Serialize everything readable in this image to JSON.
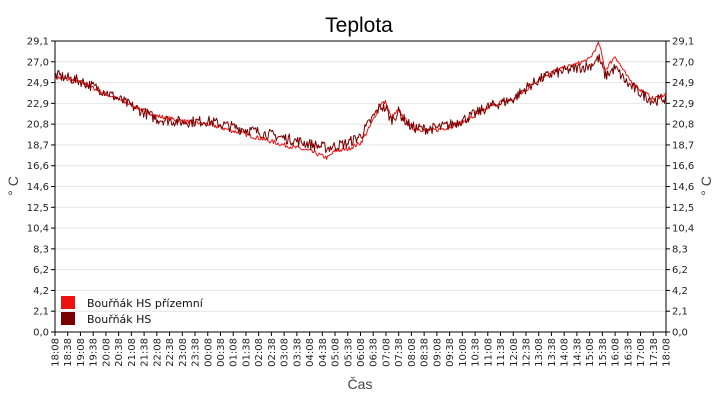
{
  "chart_data": {
    "type": "line",
    "title": "Teplota",
    "xlabel": "Čas",
    "ylabel": "° C",
    "ylim": [
      0,
      29.1
    ],
    "yticks": [
      "0,0",
      "2,1",
      "4,2",
      "6,2",
      "8,3",
      "10,4",
      "12,5",
      "14,6",
      "16,6",
      "18,7",
      "20,8",
      "22,9",
      "24,9",
      "27,0",
      "29,1"
    ],
    "xticks": [
      "18:08",
      "18:38",
      "19:08",
      "19:38",
      "20:08",
      "20:38",
      "21:08",
      "21:38",
      "22:08",
      "22:38",
      "23:08",
      "23:38",
      "00:08",
      "00:38",
      "01:08",
      "01:38",
      "02:08",
      "02:38",
      "03:08",
      "03:38",
      "04:08",
      "04:38",
      "05:08",
      "05:38",
      "06:08",
      "06:38",
      "07:08",
      "07:38",
      "08:08",
      "08:38",
      "09:08",
      "09:38",
      "10:08",
      "10:38",
      "11:08",
      "11:38",
      "12:08",
      "12:38",
      "13:08",
      "13:38",
      "14:08",
      "14:38",
      "15:08",
      "15:38",
      "16:08",
      "16:38",
      "17:08",
      "17:38",
      "18:08"
    ],
    "grid": true,
    "legend_position": "bottom-left",
    "series": [
      {
        "name": "Bouřňák HS přízemní",
        "color": "#ee1111",
        "x": [
          "18:08",
          "19:08",
          "20:08",
          "21:08",
          "22:08",
          "23:08",
          "00:08",
          "01:08",
          "02:08",
          "03:08",
          "04:08",
          "04:50",
          "05:08",
          "05:38",
          "06:08",
          "06:30",
          "06:55",
          "07:08",
          "07:20",
          "07:38",
          "07:50",
          "08:08",
          "08:38",
          "09:08",
          "09:38",
          "10:08",
          "10:38",
          "11:08",
          "11:38",
          "12:08",
          "12:38",
          "13:08",
          "13:38",
          "14:08",
          "14:38",
          "15:08",
          "15:30",
          "15:45",
          "16:08",
          "16:38",
          "17:08",
          "17:38",
          "18:08"
        ],
        "values": [
          25.5,
          25.0,
          23.8,
          22.7,
          21.6,
          21.1,
          20.8,
          20.1,
          19.4,
          18.7,
          18.1,
          17.4,
          18.1,
          18.3,
          18.9,
          20.5,
          22.8,
          23.0,
          21.4,
          22.2,
          21.4,
          20.4,
          20.2,
          20.2,
          20.5,
          21.0,
          21.6,
          22.4,
          23.0,
          23.2,
          24.2,
          25.3,
          26.0,
          26.4,
          26.8,
          27.3,
          28.9,
          26.2,
          27.6,
          25.4,
          24.2,
          23.3,
          23.8
        ]
      },
      {
        "name": "Bouřňák HS",
        "color": "#7a0000",
        "x": [
          "18:08",
          "19:08",
          "20:08",
          "21:08",
          "22:08",
          "23:08",
          "00:08",
          "01:08",
          "02:08",
          "03:08",
          "04:08",
          "04:50",
          "05:08",
          "05:38",
          "06:08",
          "06:30",
          "06:55",
          "07:08",
          "07:20",
          "07:38",
          "07:50",
          "08:08",
          "08:38",
          "09:08",
          "09:38",
          "10:08",
          "10:38",
          "11:08",
          "11:38",
          "12:08",
          "12:38",
          "13:08",
          "13:38",
          "14:08",
          "14:38",
          "15:08",
          "15:30",
          "15:45",
          "16:08",
          "16:38",
          "17:08",
          "17:38",
          "18:08"
        ],
        "values": [
          25.7,
          25.1,
          24.0,
          22.6,
          21.3,
          21.0,
          21.1,
          20.5,
          20.0,
          19.4,
          18.8,
          18.4,
          18.6,
          18.9,
          19.6,
          21.0,
          22.6,
          22.3,
          21.2,
          22.0,
          21.3,
          20.5,
          20.3,
          20.4,
          20.7,
          21.2,
          21.8,
          22.5,
          22.9,
          23.3,
          24.4,
          25.2,
          25.8,
          26.1,
          26.4,
          26.6,
          27.4,
          25.6,
          26.4,
          24.8,
          23.9,
          23.1,
          23.4
        ]
      }
    ]
  }
}
